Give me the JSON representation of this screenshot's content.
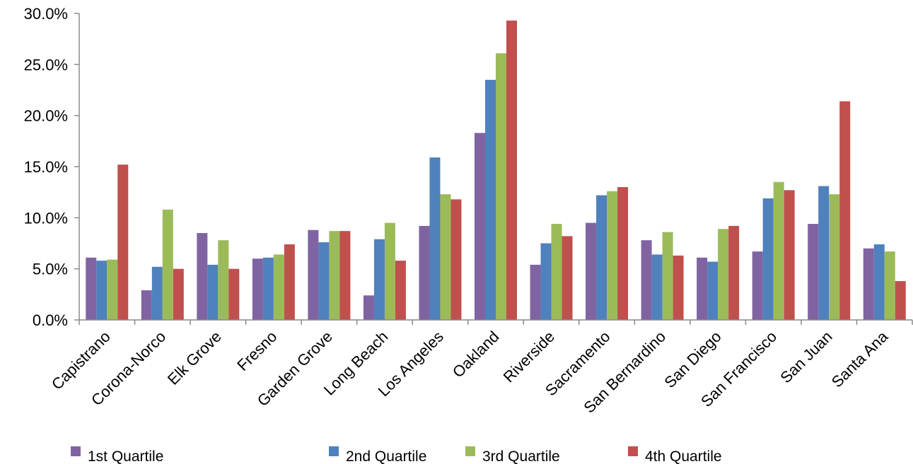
{
  "chart_data": {
    "type": "bar",
    "categories": [
      "Capistrano",
      "Corona-Norco",
      "Elk Grove",
      "Fresno",
      "Garden Grove",
      "Long Beach",
      "Los Angeles",
      "Oakland",
      "Riverside",
      "Sacramento",
      "San Bernardino",
      "San Diego",
      "San Francisco",
      "San Juan",
      "Santa Ana"
    ],
    "series": [
      {
        "name": "1st Quartile",
        "color": "#8064A2",
        "values": [
          6.1,
          2.9,
          8.5,
          6.0,
          8.8,
          2.4,
          9.2,
          18.3,
          5.4,
          9.5,
          7.8,
          6.1,
          6.7,
          9.4,
          7.0
        ]
      },
      {
        "name": "2nd Quartile",
        "color": "#4F81BD",
        "values": [
          5.8,
          5.2,
          5.4,
          6.1,
          7.6,
          7.9,
          15.9,
          23.5,
          7.5,
          12.2,
          6.4,
          5.7,
          11.9,
          13.1,
          7.4
        ]
      },
      {
        "name": "3rd Quartile",
        "color": "#9BBB59",
        "values": [
          5.9,
          10.8,
          7.8,
          6.4,
          8.7,
          9.5,
          12.3,
          26.1,
          9.4,
          12.6,
          8.6,
          8.9,
          13.5,
          12.3,
          6.7
        ]
      },
      {
        "name": "4th Quartile",
        "color": "#C0504D",
        "values": [
          15.2,
          5.0,
          5.0,
          7.4,
          8.7,
          5.8,
          11.8,
          29.3,
          8.2,
          13.0,
          6.3,
          9.2,
          12.7,
          21.4,
          3.8
        ]
      }
    ],
    "y_ticks": [
      "0.0%",
      "5.0%",
      "10.0%",
      "15.0%",
      "20.0%",
      "25.0%",
      "30.0%"
    ],
    "ylim": [
      0,
      30
    ],
    "title": "",
    "xlabel": "",
    "ylabel": "",
    "grid": false,
    "legend_position": "bottom"
  }
}
